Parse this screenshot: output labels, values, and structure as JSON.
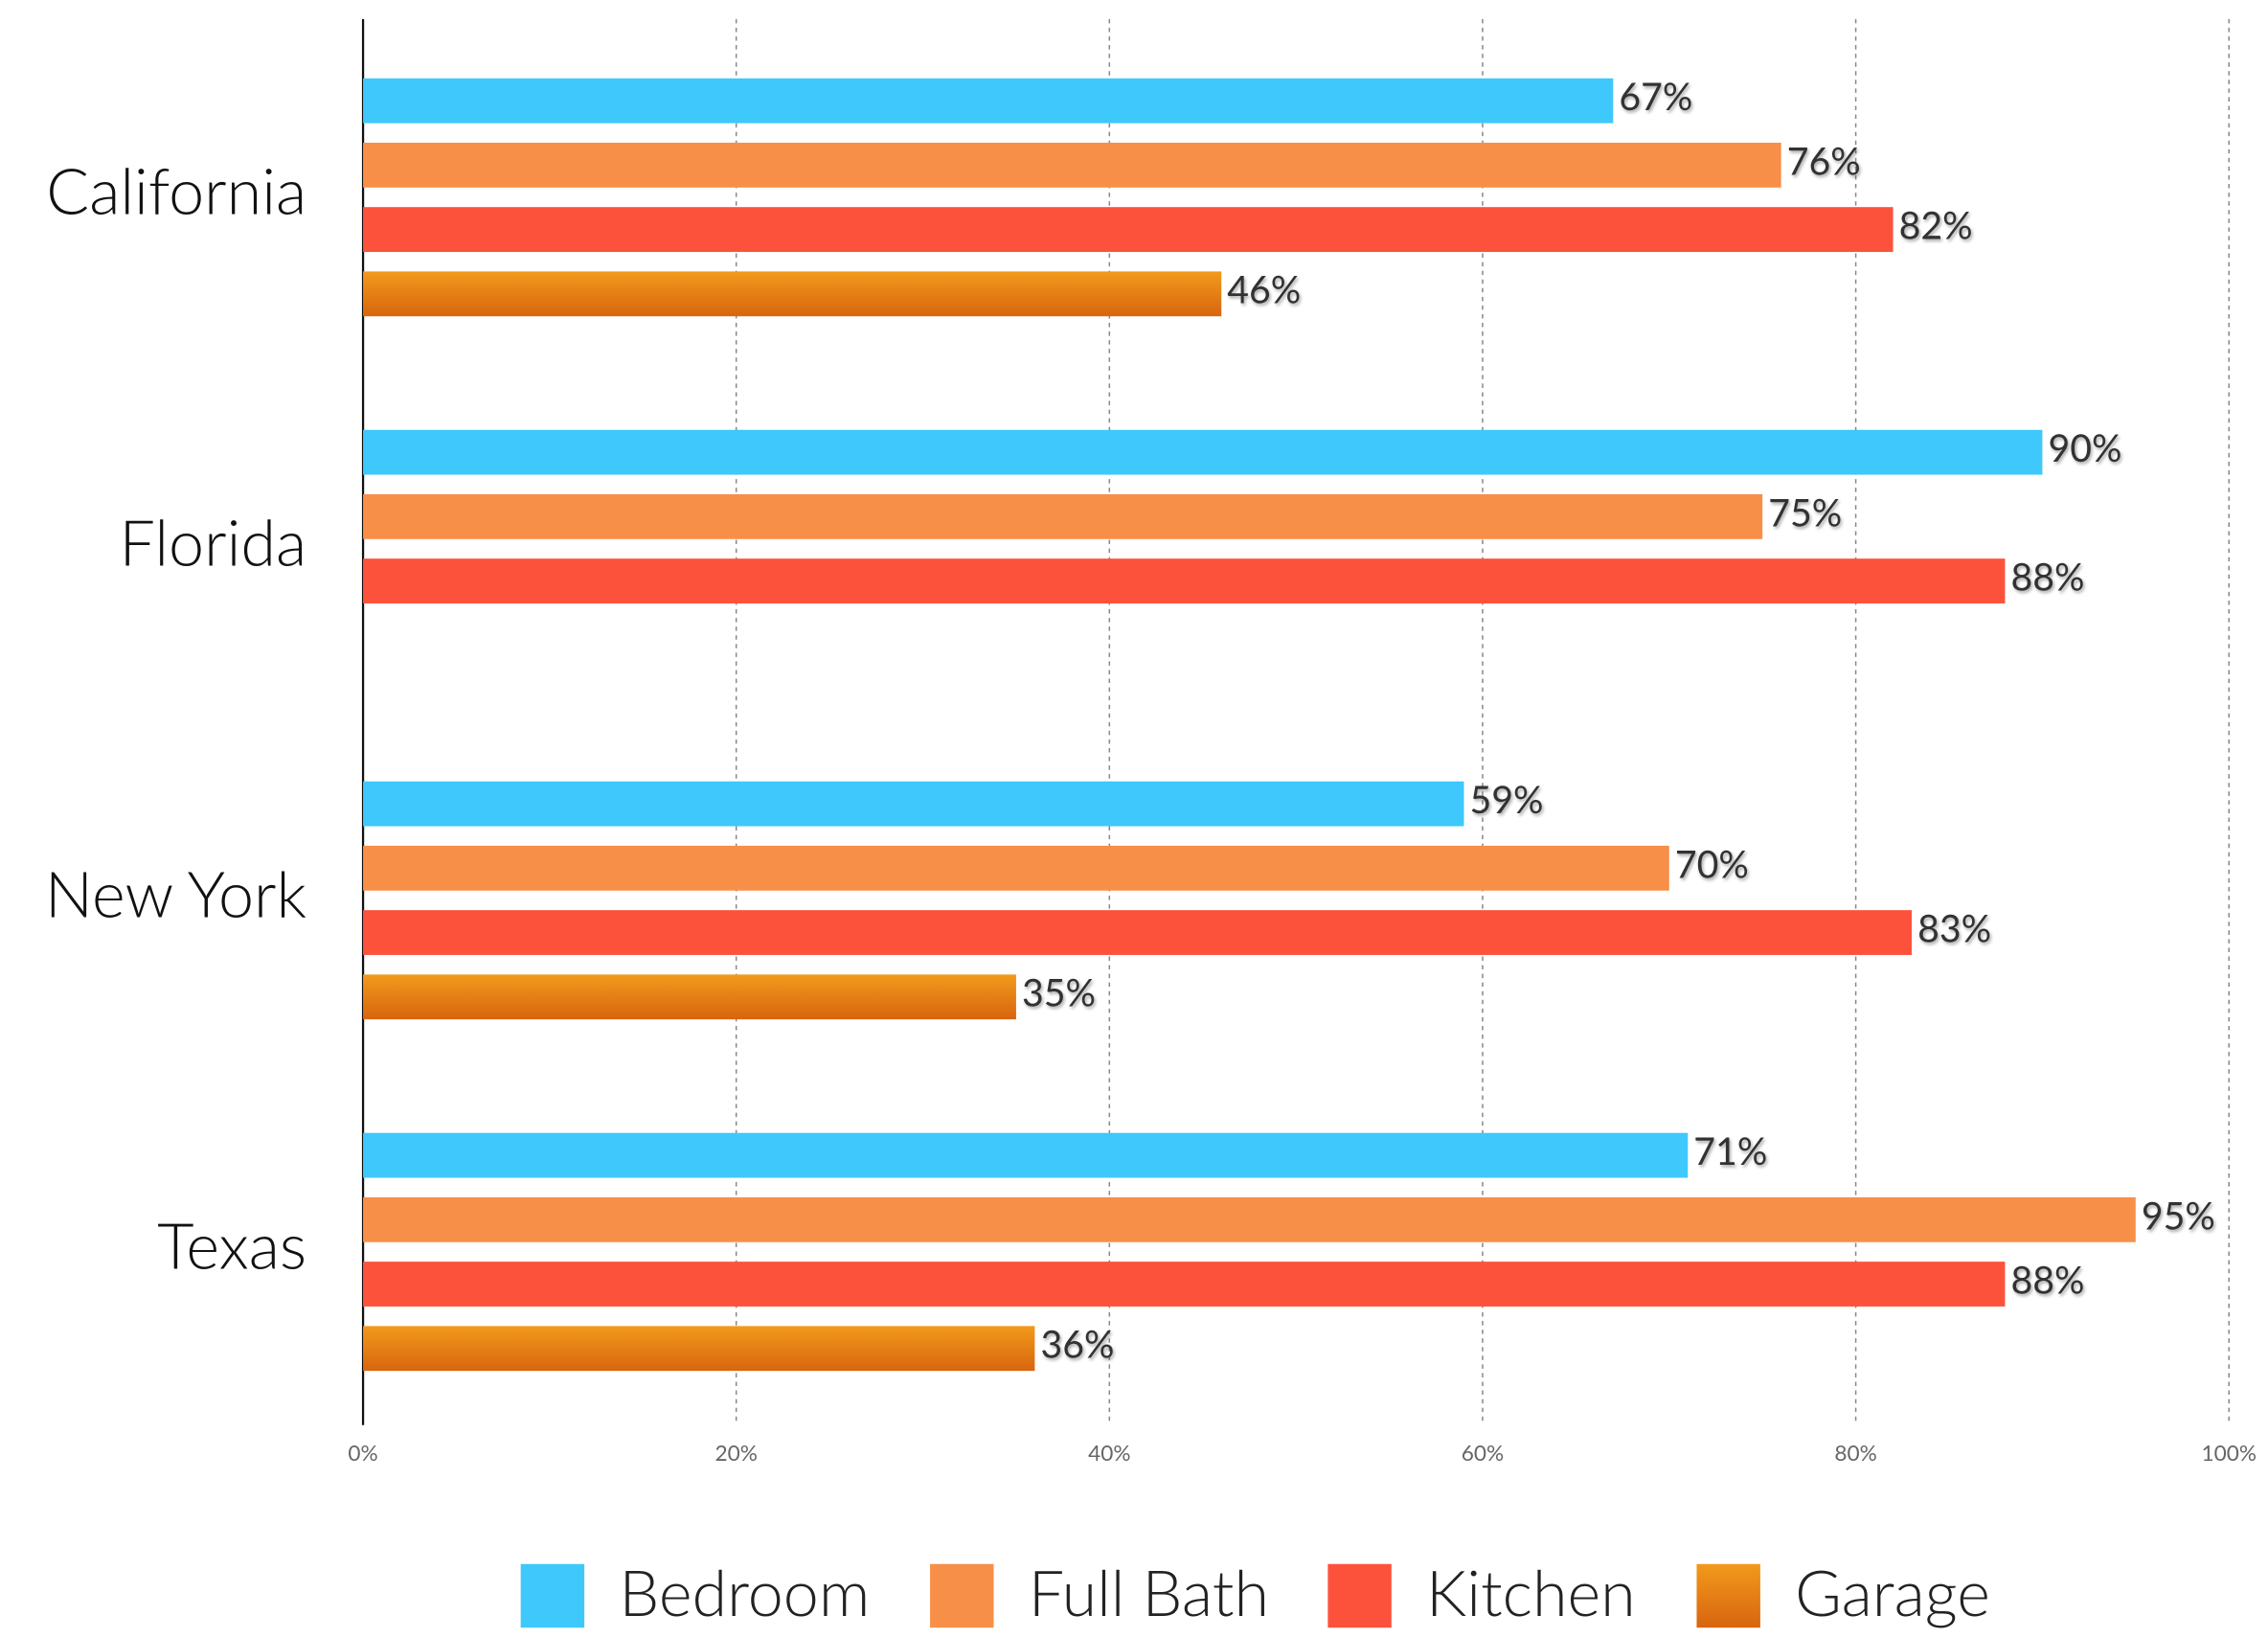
{
  "chart_data": {
    "type": "bar",
    "orientation": "horizontal",
    "categories": [
      "California",
      "Florida",
      "New York",
      "Texas"
    ],
    "series": [
      {
        "name": "Bedroom",
        "color": "#3ec8fc",
        "values": [
          67,
          90,
          59,
          71
        ],
        "value_labels": [
          "67%",
          "90%",
          "59%",
          "71%"
        ]
      },
      {
        "name": "Full Bath",
        "color": "#f78f48",
        "values": [
          76,
          75,
          70,
          95
        ],
        "value_labels": [
          "76%",
          "75%",
          "70%",
          "95%"
        ]
      },
      {
        "name": "Kitchen",
        "color": "#fc523c",
        "values": [
          82,
          88,
          83,
          88
        ],
        "value_labels": [
          "82%",
          "88%",
          "83%",
          "88%"
        ]
      },
      {
        "name": "Garage",
        "color": "#e47c14",
        "values": [
          46,
          null,
          35,
          36
        ],
        "value_labels": [
          "46%",
          null,
          "35%",
          "36%"
        ]
      }
    ],
    "xlim": [
      0,
      100
    ],
    "xticks": [
      {
        "value": 0,
        "label": "0%"
      },
      {
        "value": 20,
        "label": "20%"
      },
      {
        "value": 40,
        "label": "40%"
      },
      {
        "value": 60,
        "label": "60%"
      },
      {
        "value": 80,
        "label": "80%"
      },
      {
        "value": 100,
        "label": "100%"
      }
    ],
    "grid": true,
    "legend": "bottom"
  }
}
